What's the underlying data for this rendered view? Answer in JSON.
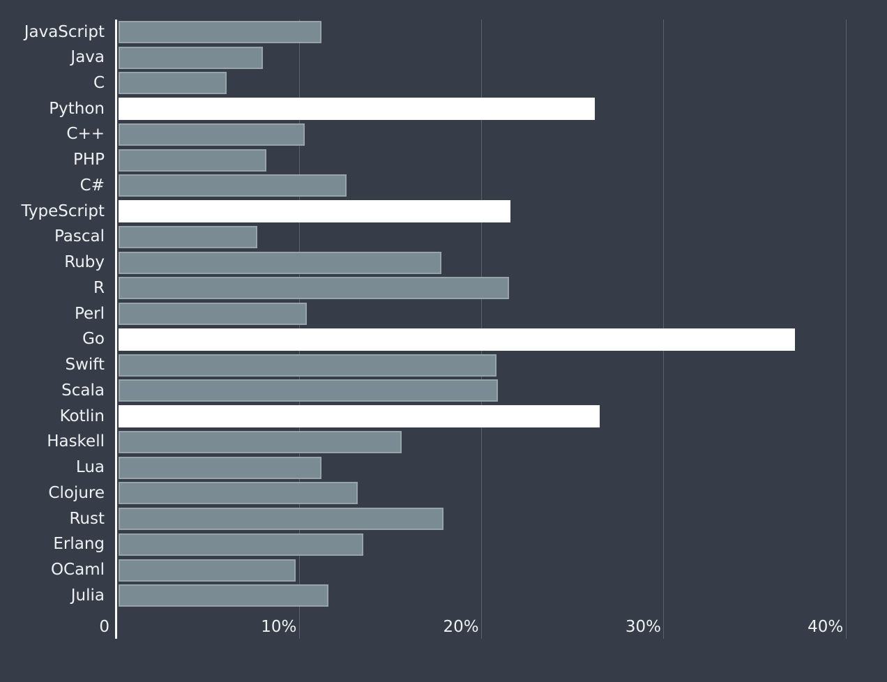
{
  "chart_data": {
    "type": "bar",
    "orientation": "horizontal",
    "title": "",
    "xlabel": "",
    "ylabel": "",
    "categories": [
      "JavaScript",
      "Java",
      "C",
      "Python",
      "C++",
      "PHP",
      "C#",
      "TypeScript",
      "Pascal",
      "Ruby",
      "R",
      "Perl",
      "Go",
      "Swift",
      "Scala",
      "Kotlin",
      "Haskell",
      "Lua",
      "Clojure",
      "Rust",
      "Erlang",
      "OCaml",
      "Julia"
    ],
    "values": [
      11.2,
      8.0,
      6.0,
      26.2,
      10.3,
      8.2,
      12.6,
      21.6,
      7.7,
      17.8,
      21.5,
      10.4,
      37.2,
      20.8,
      20.9,
      26.5,
      15.6,
      11.2,
      13.2,
      17.9,
      13.5,
      9.8,
      11.6
    ],
    "highlighted_categories": [
      "Python",
      "TypeScript",
      "Go",
      "Kotlin"
    ],
    "x_ticks": [
      {
        "value": 0,
        "label": "0"
      },
      {
        "value": 10,
        "label": "10%"
      },
      {
        "value": 20,
        "label": "20%"
      },
      {
        "value": 30,
        "label": "30%"
      },
      {
        "value": 40,
        "label": "40%"
      }
    ],
    "xlim": [
      0,
      42.3
    ],
    "grid": true,
    "legend": "none",
    "colors": {
      "background": "#363d48",
      "bar": "#7a8b93",
      "bar_highlight": "#ffffff",
      "gridline": "#5a626d",
      "axis_line": "#fbfcfc",
      "text": "#eef0f2"
    }
  }
}
